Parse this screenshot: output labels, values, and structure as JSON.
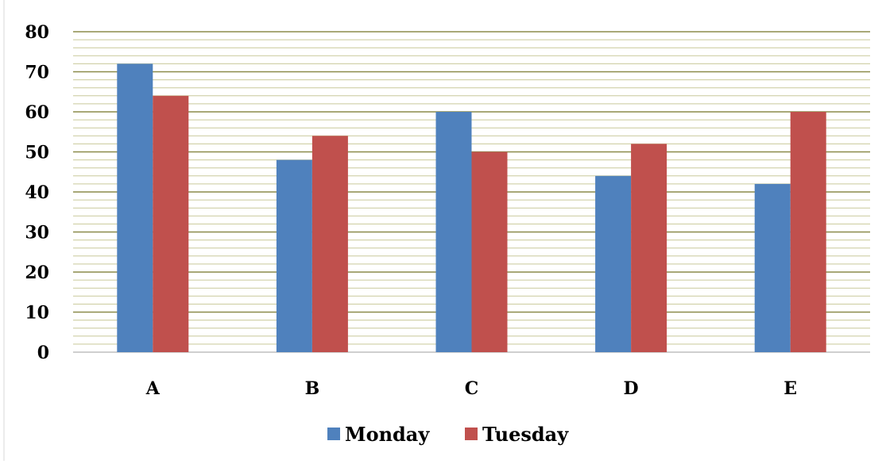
{
  "chart_data": {
    "type": "bar",
    "categories": [
      "A",
      "B",
      "C",
      "D",
      "E"
    ],
    "series": [
      {
        "name": "Monday",
        "values": [
          72,
          48,
          60,
          44,
          42
        ],
        "color": "#4f81bd"
      },
      {
        "name": "Tuesday",
        "values": [
          64,
          54,
          50,
          52,
          60
        ],
        "color": "#c0504d"
      }
    ],
    "ylim": [
      0,
      80
    ],
    "yticks": [
      "0",
      "10",
      "20",
      "30",
      "40",
      "50",
      "60",
      "70",
      "80"
    ],
    "ytick_values": [
      0,
      10,
      20,
      30,
      40,
      50,
      60,
      70,
      80
    ],
    "minor_grid_step": 2,
    "grid": true,
    "legend_position": "bottom",
    "colors": {
      "major_grid": "#8b8b4a",
      "minor_grid": "#c9c99a",
      "frame": "#d9d9d9"
    }
  }
}
